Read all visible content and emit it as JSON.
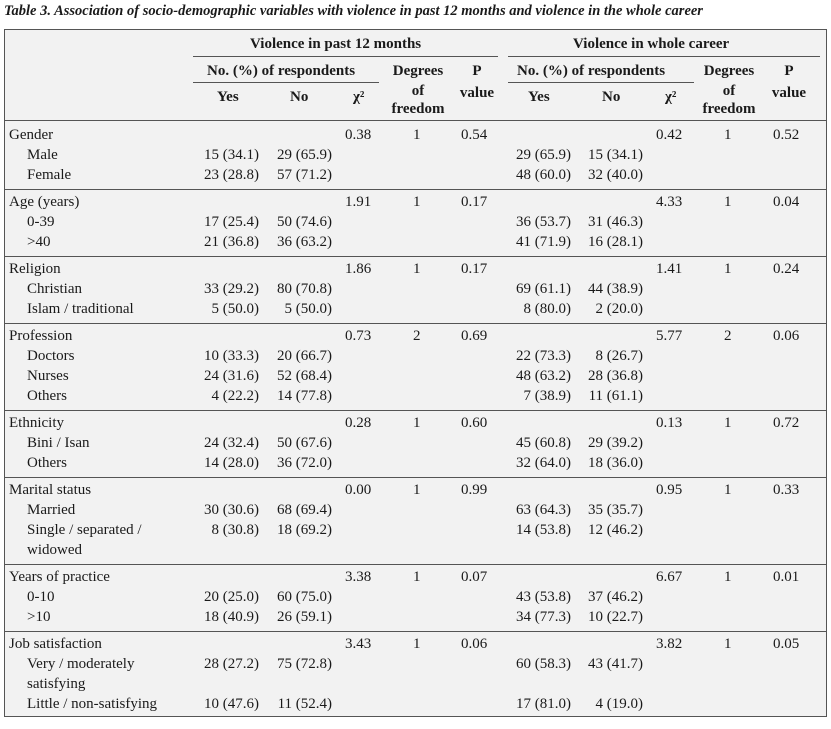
{
  "caption": "Table 3. Association of socio-demographic variables with violence in past 12 months and violence in the whole career",
  "headers": {
    "group1": "Violence in past 12 months",
    "group2": "Violence in whole career",
    "respondents": "No. (%) of respondents",
    "yes": "Yes",
    "no": "No",
    "chi": "χ²",
    "dof1": "Degrees",
    "dof2": "of",
    "dof3": "freedom",
    "p1": "P",
    "p2": "value"
  },
  "groups": [
    {
      "label": "Gender",
      "a_chi": "0.38",
      "a_df": "1",
      "a_p": "0.54",
      "b_chi": "0.42",
      "b_df": "1",
      "b_p": "0.52",
      "rows": [
        {
          "label": "Male",
          "a_yes": "15 (34.1)",
          "a_no": "29 (65.9)",
          "b_yes": "29 (65.9)",
          "b_no": "15 (34.1)"
        },
        {
          "label": "Female",
          "a_yes": "23 (28.8)",
          "a_no": "57 (71.2)",
          "b_yes": "48 (60.0)",
          "b_no": "32 (40.0)"
        }
      ]
    },
    {
      "label": "Age (years)",
      "a_chi": "1.91",
      "a_df": "1",
      "a_p": "0.17",
      "b_chi": "4.33",
      "b_df": "1",
      "b_p": "0.04",
      "rows": [
        {
          "label": "0-39",
          "a_yes": "17 (25.4)",
          "a_no": "50 (74.6)",
          "b_yes": "36 (53.7)",
          "b_no": "31 (46.3)"
        },
        {
          "label": ">40",
          "a_yes": "21 (36.8)",
          "a_no": "36 (63.2)",
          "b_yes": "41 (71.9)",
          "b_no": "16 (28.1)"
        }
      ]
    },
    {
      "label": "Religion",
      "a_chi": "1.86",
      "a_df": "1",
      "a_p": "0.17",
      "b_chi": "1.41",
      "b_df": "1",
      "b_p": "0.24",
      "rows": [
        {
          "label": "Christian",
          "a_yes": "33 (29.2)",
          "a_no": "80 (70.8)",
          "b_yes": "69 (61.1)",
          "b_no": "44 (38.9)"
        },
        {
          "label": "Islam / traditional",
          "a_yes": "5 (50.0)",
          "a_no": "5 (50.0)",
          "b_yes": "8 (80.0)",
          "b_no": "2 (20.0)"
        }
      ]
    },
    {
      "label": "Profession",
      "a_chi": "0.73",
      "a_df": "2",
      "a_p": "0.69",
      "b_chi": "5.77",
      "b_df": "2",
      "b_p": "0.06",
      "rows": [
        {
          "label": "Doctors",
          "a_yes": "10 (33.3)",
          "a_no": "20 (66.7)",
          "b_yes": "22 (73.3)",
          "b_no": "8 (26.7)"
        },
        {
          "label": "Nurses",
          "a_yes": "24 (31.6)",
          "a_no": "52 (68.4)",
          "b_yes": "48 (63.2)",
          "b_no": "28 (36.8)"
        },
        {
          "label": "Others",
          "a_yes": "4 (22.2)",
          "a_no": "14 (77.8)",
          "b_yes": "7 (38.9)",
          "b_no": "11 (61.1)"
        }
      ]
    },
    {
      "label": "Ethnicity",
      "a_chi": "0.28",
      "a_df": "1",
      "a_p": "0.60",
      "b_chi": "0.13",
      "b_df": "1",
      "b_p": "0.72",
      "rows": [
        {
          "label": "Bini / Isan",
          "a_yes": "24 (32.4)",
          "a_no": "50 (67.6)",
          "b_yes": "45 (60.8)",
          "b_no": "29 (39.2)"
        },
        {
          "label": "Others",
          "a_yes": "14 (28.0)",
          "a_no": "36 (72.0)",
          "b_yes": "32 (64.0)",
          "b_no": "18 (36.0)"
        }
      ]
    },
    {
      "label": "Marital status",
      "a_chi": "0.00",
      "a_df": "1",
      "a_p": "0.99",
      "b_chi": "0.95",
      "b_df": "1",
      "b_p": "0.33",
      "rows": [
        {
          "label": "Married",
          "a_yes": "30 (30.6)",
          "a_no": "68 (69.4)",
          "b_yes": "63 (64.3)",
          "b_no": "35 (35.7)"
        },
        {
          "label": "Single / separated /",
          "a_yes": "8 (30.8)",
          "a_no": "18 (69.2)",
          "b_yes": "14 (53.8)",
          "b_no": "12 (46.2)"
        },
        {
          "label": "widowed",
          "a_yes": "",
          "a_no": "",
          "b_yes": "",
          "b_no": ""
        }
      ]
    },
    {
      "label": "Years of practice",
      "a_chi": "3.38",
      "a_df": "1",
      "a_p": "0.07",
      "b_chi": "6.67",
      "b_df": "1",
      "b_p": "0.01",
      "rows": [
        {
          "label": "0-10",
          "a_yes": "20 (25.0)",
          "a_no": "60 (75.0)",
          "b_yes": "43 (53.8)",
          "b_no": "37 (46.2)"
        },
        {
          "label": ">10",
          "a_yes": "18 (40.9)",
          "a_no": "26 (59.1)",
          "b_yes": "34 (77.3)",
          "b_no": "10 (22.7)"
        }
      ]
    },
    {
      "label": "Job satisfaction",
      "a_chi": "3.43",
      "a_df": "1",
      "a_p": "0.06",
      "b_chi": "3.82",
      "b_df": "1",
      "b_p": "0.05",
      "rows": [
        {
          "label": "Very / moderately",
          "a_yes": "28 (27.2)",
          "a_no": "75 (72.8)",
          "b_yes": "60 (58.3)",
          "b_no": "43 (41.7)"
        },
        {
          "label": "satisfying",
          "a_yes": "",
          "a_no": "",
          "b_yes": "",
          "b_no": ""
        },
        {
          "label": "Little / non-satisfying",
          "a_yes": "10 (47.6)",
          "a_no": "11 (52.4)",
          "b_yes": "17 (81.0)",
          "b_no": "4 (19.0)"
        }
      ]
    }
  ]
}
